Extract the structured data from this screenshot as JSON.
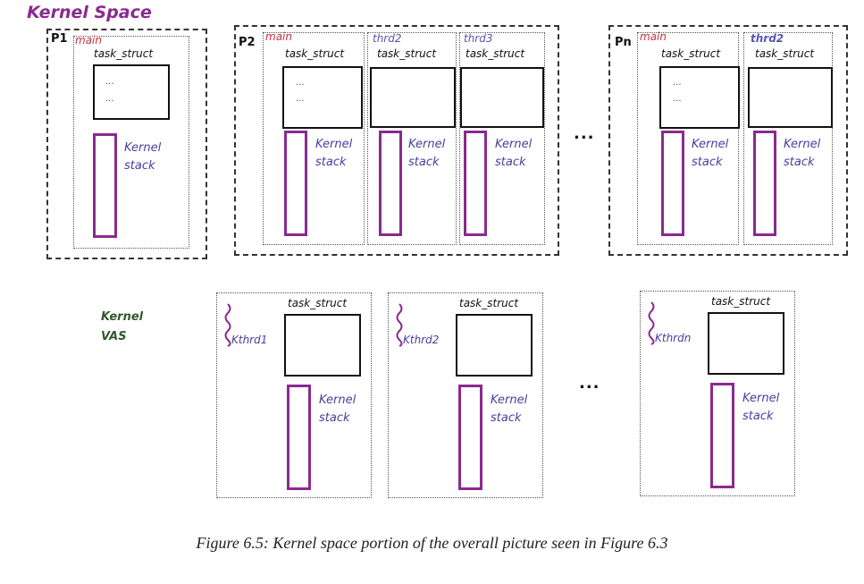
{
  "title": "Kernel Space",
  "processes": [
    {
      "label": "P1",
      "threads": [
        {
          "name": "main"
        }
      ]
    },
    {
      "label": "P2",
      "threads": [
        {
          "name": "main"
        },
        {
          "name": "thrd2"
        },
        {
          "name": "thrd3"
        }
      ]
    },
    {
      "label": "Pn",
      "threads": [
        {
          "name": "main"
        },
        {
          "name": "thrd2"
        }
      ]
    }
  ],
  "labels": {
    "task_struct": "task_struct",
    "kernel": "Kernel",
    "stack": "stack",
    "dots": "...",
    "ellipsis": "...",
    "kernel_vas_line1": "Kernel",
    "kernel_vas_line2": "VAS"
  },
  "kernel_threads": [
    "Kthrd1",
    "Kthrd2",
    "Kthrdn"
  ],
  "caption": "Figure 6.5: Kernel space portion of the overall picture seen in Figure 6.3",
  "colors": {
    "title": "#8a2a8f",
    "main_thread": "#c8323e",
    "other_thread": "#5a54b0",
    "kernel_stack_box": "#8a2a8f",
    "kernel_stack_text": "#4a3c9e",
    "kernel_vas": "#2f5a2c"
  }
}
